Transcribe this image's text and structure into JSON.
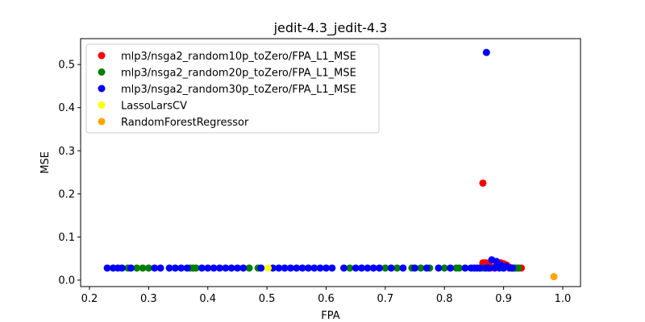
{
  "chart_data": {
    "type": "scatter",
    "title": "jedit-4.3_jedit-4.3",
    "xlabel": "FPA",
    "ylabel": "MSE",
    "xlim": [
      0.185,
      1.03
    ],
    "ylim": [
      -0.015,
      0.56
    ],
    "xticks": [
      "0.2",
      "0.3",
      "0.4",
      "0.5",
      "0.6",
      "0.7",
      "0.8",
      "0.9",
      "1.0"
    ],
    "yticks": [
      "0.0",
      "0.1",
      "0.2",
      "0.3",
      "0.4",
      "0.5"
    ],
    "grid": false,
    "legend_position": "top-left",
    "series": [
      {
        "name": "mlp3/nsga2_random10p_toZero/FPA_L1_MSE",
        "color": "#ff0000",
        "points": [
          [
            0.865,
            0.225
          ],
          [
            0.865,
            0.04
          ],
          [
            0.87,
            0.04
          ],
          [
            0.875,
            0.035
          ],
          [
            0.88,
            0.03
          ],
          [
            0.885,
            0.03
          ],
          [
            0.89,
            0.035
          ],
          [
            0.895,
            0.04
          ],
          [
            0.9,
            0.038
          ],
          [
            0.905,
            0.035
          ],
          [
            0.91,
            0.03
          ],
          [
            0.915,
            0.028
          ],
          [
            0.92,
            0.028
          ],
          [
            0.925,
            0.028
          ],
          [
            0.93,
            0.028
          ],
          [
            0.87,
            0.03
          ],
          [
            0.86,
            0.028
          ],
          [
            0.878,
            0.028
          ]
        ]
      },
      {
        "name": "mlp3/nsga2_random20p_toZero/FPA_L1_MSE",
        "color": "#008000",
        "points": [
          [
            0.265,
            0.028
          ],
          [
            0.28,
            0.028
          ],
          [
            0.29,
            0.028
          ],
          [
            0.3,
            0.028
          ],
          [
            0.37,
            0.028
          ],
          [
            0.375,
            0.028
          ],
          [
            0.38,
            0.028
          ],
          [
            0.47,
            0.028
          ],
          [
            0.485,
            0.028
          ],
          [
            0.64,
            0.028
          ],
          [
            0.7,
            0.028
          ],
          [
            0.72,
            0.028
          ],
          [
            0.745,
            0.028
          ],
          [
            0.76,
            0.028
          ],
          [
            0.775,
            0.028
          ],
          [
            0.8,
            0.028
          ],
          [
            0.82,
            0.028
          ],
          [
            0.825,
            0.028
          ],
          [
            0.865,
            0.028
          ],
          [
            0.9,
            0.028
          ],
          [
            0.915,
            0.028
          ],
          [
            0.92,
            0.028
          ],
          [
            0.925,
            0.028
          ]
        ]
      },
      {
        "name": "mlp3/nsga2_random30p_toZero/FPA_L1_MSE",
        "color": "#0000ff",
        "points": [
          [
            0.871,
            0.528
          ],
          [
            0.88,
            0.047
          ],
          [
            0.888,
            0.043
          ],
          [
            0.895,
            0.035
          ],
          [
            0.905,
            0.032
          ],
          [
            0.915,
            0.028
          ],
          [
            0.87,
            0.028
          ],
          [
            0.875,
            0.028
          ],
          [
            0.885,
            0.028
          ],
          [
            0.23,
            0.028
          ],
          [
            0.24,
            0.028
          ],
          [
            0.248,
            0.028
          ],
          [
            0.255,
            0.028
          ],
          [
            0.27,
            0.028
          ],
          [
            0.31,
            0.028
          ],
          [
            0.32,
            0.028
          ],
          [
            0.335,
            0.028
          ],
          [
            0.345,
            0.028
          ],
          [
            0.355,
            0.028
          ],
          [
            0.365,
            0.028
          ],
          [
            0.39,
            0.028
          ],
          [
            0.4,
            0.028
          ],
          [
            0.41,
            0.028
          ],
          [
            0.42,
            0.028
          ],
          [
            0.43,
            0.028
          ],
          [
            0.44,
            0.028
          ],
          [
            0.45,
            0.028
          ],
          [
            0.46,
            0.028
          ],
          [
            0.49,
            0.028
          ],
          [
            0.51,
            0.028
          ],
          [
            0.52,
            0.028
          ],
          [
            0.53,
            0.028
          ],
          [
            0.54,
            0.028
          ],
          [
            0.55,
            0.028
          ],
          [
            0.56,
            0.028
          ],
          [
            0.57,
            0.028
          ],
          [
            0.58,
            0.028
          ],
          [
            0.59,
            0.028
          ],
          [
            0.6,
            0.028
          ],
          [
            0.61,
            0.028
          ],
          [
            0.63,
            0.028
          ],
          [
            0.65,
            0.028
          ],
          [
            0.66,
            0.028
          ],
          [
            0.67,
            0.028
          ],
          [
            0.68,
            0.028
          ],
          [
            0.69,
            0.028
          ],
          [
            0.71,
            0.028
          ],
          [
            0.73,
            0.028
          ],
          [
            0.75,
            0.028
          ],
          [
            0.77,
            0.028
          ],
          [
            0.79,
            0.028
          ],
          [
            0.81,
            0.028
          ],
          [
            0.835,
            0.028
          ],
          [
            0.845,
            0.028
          ],
          [
            0.85,
            0.028
          ],
          [
            0.855,
            0.028
          ],
          [
            0.86,
            0.028
          ],
          [
            0.893,
            0.028
          ],
          [
            0.9,
            0.028
          ],
          [
            0.91,
            0.028
          ]
        ]
      },
      {
        "name": "LassoLarsCV",
        "color": "#ffff00",
        "points": [
          [
            0.502,
            0.028
          ]
        ]
      },
      {
        "name": "RandomForestRegressor",
        "color": "#ffa500",
        "points": [
          [
            0.985,
            0.008
          ]
        ]
      }
    ]
  }
}
